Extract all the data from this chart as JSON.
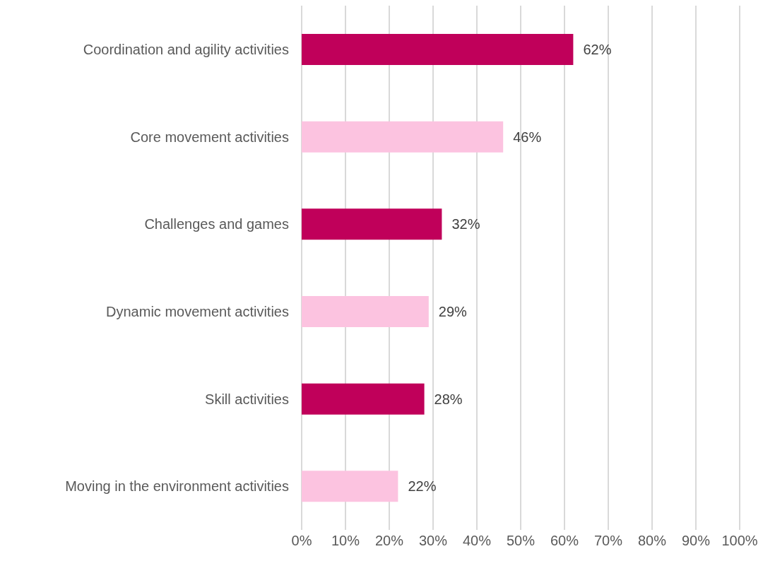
{
  "chart_data": {
    "type": "bar",
    "orientation": "horizontal",
    "categories": [
      "Coordination and agility activities",
      "Core movement activities",
      "Challenges and games",
      "Dynamic movement activities",
      "Skill activities",
      "Moving in the environment activities"
    ],
    "values": [
      62,
      46,
      32,
      29,
      28,
      22
    ],
    "colors": [
      "#c0005a",
      "#fcc3e0",
      "#c0005a",
      "#fcc3e0",
      "#c0005a",
      "#fcc3e0"
    ],
    "value_labels": [
      "62%",
      "46%",
      "32%",
      "29%",
      "28%",
      "22%"
    ],
    "xlim": [
      0,
      100
    ],
    "xticks": [
      {
        "value": 0,
        "label": "0%"
      },
      {
        "value": 10,
        "label": "10%"
      },
      {
        "value": 20,
        "label": "20%"
      },
      {
        "value": 30,
        "label": "30%"
      },
      {
        "value": 40,
        "label": "40%"
      },
      {
        "value": 50,
        "label": "50%"
      },
      {
        "value": 60,
        "label": "60%"
      },
      {
        "value": 70,
        "label": "70%"
      },
      {
        "value": 80,
        "label": "80%"
      },
      {
        "value": 90,
        "label": "90%"
      },
      {
        "value": 100,
        "label": "100%"
      }
    ],
    "grid": "x",
    "legend": false
  }
}
